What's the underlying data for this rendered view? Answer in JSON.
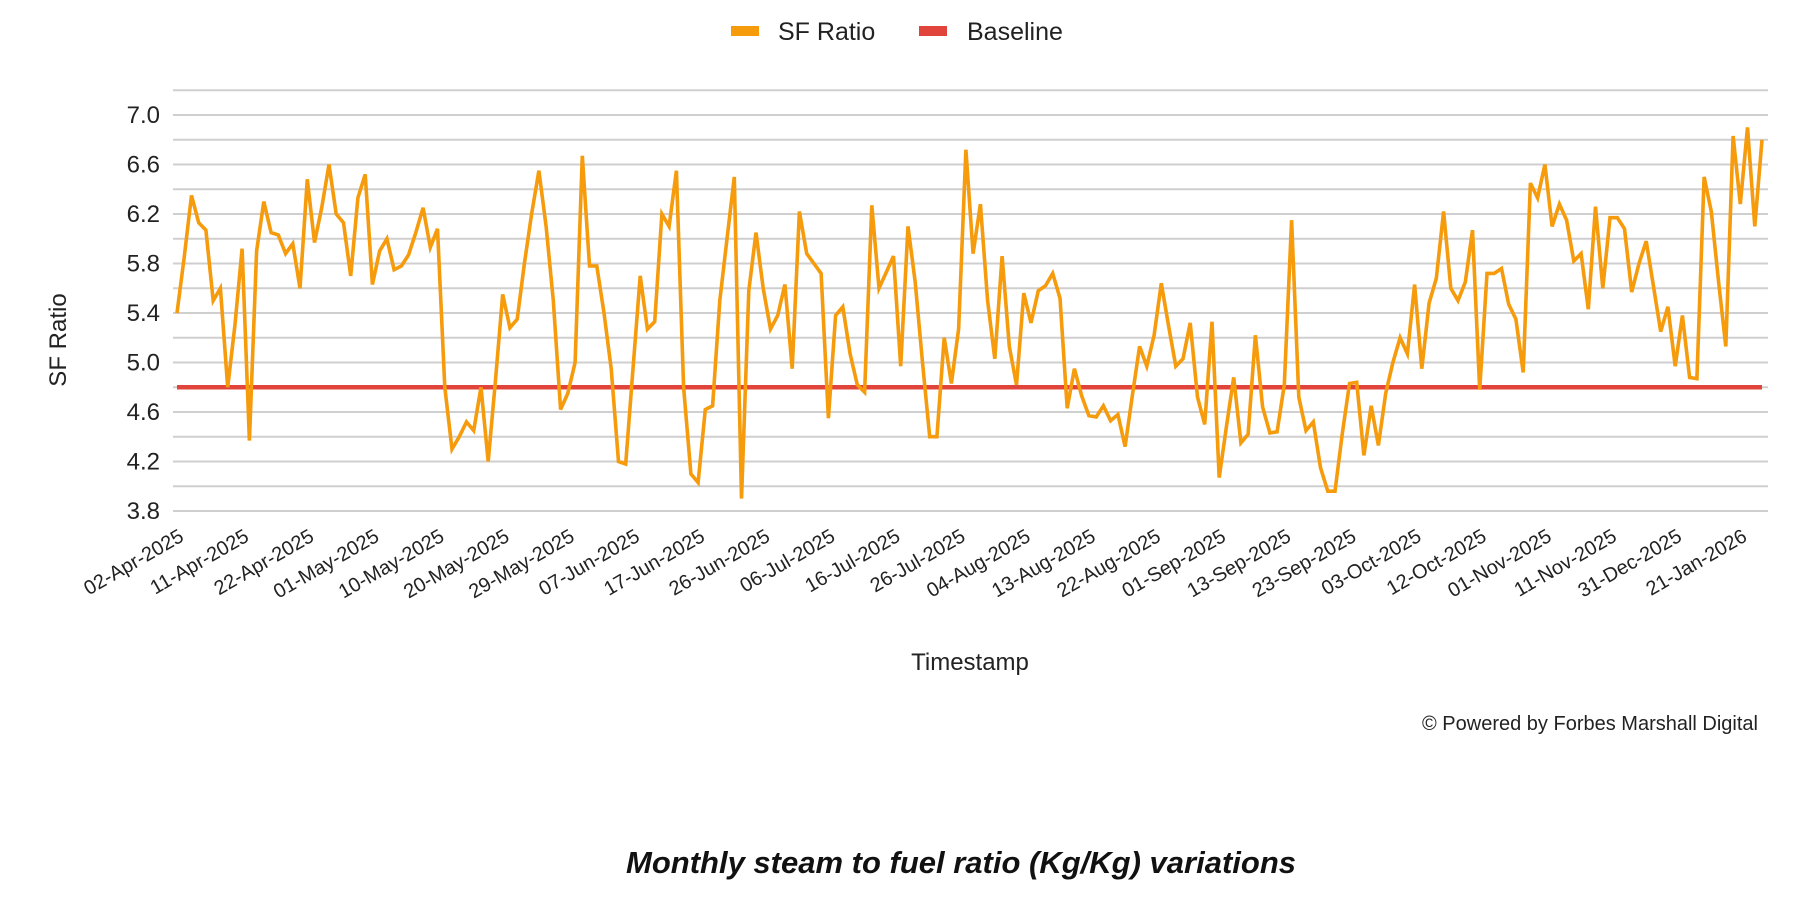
{
  "chart_data": {
    "type": "line",
    "title": "",
    "xlabel": "Timestamp",
    "ylabel": "SF Ratio",
    "ylim": [
      3.8,
      7.2
    ],
    "y_ticks": [
      "7.0",
      "6.6",
      "6.2",
      "5.8",
      "5.4",
      "5.0",
      "4.6",
      "4.2",
      "3.8"
    ],
    "grid": true,
    "legend_position": "top",
    "x_tick_labels": [
      "02-Apr-2025",
      "11-Apr-2025",
      "22-Apr-2025",
      "01-May-2025",
      "10-May-2025",
      "20-May-2025",
      "29-May-2025",
      "07-Jun-2025",
      "17-Jun-2025",
      "26-Jun-2025",
      "06-Jul-2025",
      "16-Jul-2025",
      "26-Jul-2025",
      "04-Aug-2025",
      "13-Aug-2025",
      "22-Aug-2025",
      "01-Sep-2025",
      "13-Sep-2025",
      "23-Sep-2025",
      "03-Oct-2025",
      "12-Oct-2025",
      "01-Nov-2025",
      "11-Nov-2025",
      "31-Dec-2025",
      "21-Jan-2026"
    ],
    "series": [
      {
        "name": "SF Ratio",
        "color": "#f59b0c",
        "values": [
          5.4,
          5.85,
          6.35,
          6.13,
          6.07,
          5.5,
          5.6,
          4.8,
          5.3,
          5.92,
          4.37,
          5.9,
          6.3,
          6.05,
          6.03,
          5.88,
          5.96,
          5.6,
          6.48,
          5.97,
          6.25,
          6.6,
          6.2,
          6.13,
          5.7,
          6.33,
          6.52,
          5.63,
          5.9,
          6.0,
          5.75,
          5.78,
          5.87,
          6.05,
          6.25,
          5.93,
          6.08,
          4.8,
          4.3,
          4.4,
          4.52,
          4.45,
          4.8,
          4.2,
          4.85,
          5.55,
          5.28,
          5.35,
          5.8,
          6.2,
          6.55,
          6.1,
          5.5,
          4.62,
          4.75,
          5.0,
          6.67,
          5.78,
          5.78,
          5.4,
          4.95,
          4.2,
          4.18,
          4.95,
          5.7,
          5.27,
          5.33,
          6.2,
          6.1,
          6.55,
          4.8,
          4.1,
          4.03,
          4.62,
          4.65,
          5.5,
          6.0,
          6.5,
          3.9,
          5.58,
          6.05,
          5.6,
          5.27,
          5.38,
          5.63,
          4.95,
          6.22,
          5.88,
          5.8,
          5.72,
          4.55,
          5.38,
          5.45,
          5.07,
          4.82,
          4.76,
          6.27,
          5.6,
          5.73,
          5.86,
          4.97,
          6.1,
          5.65,
          5.0,
          4.4,
          4.4,
          5.2,
          4.83,
          5.27,
          6.72,
          5.88,
          6.28,
          5.5,
          5.03,
          5.86,
          5.13,
          4.82,
          5.56,
          5.32,
          5.58,
          5.62,
          5.72,
          5.52,
          4.63,
          4.95,
          4.73,
          4.57,
          4.56,
          4.65,
          4.53,
          4.58,
          4.32,
          4.73,
          5.13,
          4.97,
          5.22,
          5.64,
          5.3,
          4.97,
          5.03,
          5.32,
          4.72,
          4.5,
          5.33,
          4.07,
          4.48,
          4.88,
          4.35,
          4.42,
          5.22,
          4.64,
          4.43,
          4.44,
          4.82,
          6.15,
          4.72,
          4.45,
          4.52,
          4.15,
          3.96,
          3.96,
          4.42,
          4.83,
          4.84,
          4.25,
          4.65,
          4.33,
          4.75,
          5.0,
          5.2,
          5.07,
          5.63,
          4.95,
          5.48,
          5.68,
          6.22,
          5.6,
          5.5,
          5.65,
          6.07,
          4.78,
          5.72,
          5.72,
          5.76,
          5.47,
          5.35,
          4.92,
          6.45,
          6.33,
          6.6,
          6.1,
          6.28,
          6.15,
          5.82,
          5.88,
          5.43,
          6.26,
          5.6,
          6.17,
          6.17,
          6.08,
          5.57,
          5.8,
          5.98,
          5.62,
          5.25,
          5.45,
          4.97,
          5.38,
          4.88,
          4.87,
          6.5,
          6.22,
          5.65,
          5.13,
          6.83,
          6.28,
          6.9,
          6.1,
          6.8
        ]
      },
      {
        "name": "Baseline",
        "color": "#e0443a",
        "value": 4.8
      }
    ]
  },
  "legend": {
    "items": [
      "SF Ratio",
      "Baseline"
    ]
  },
  "credit": "© Powered by Forbes Marshall Digital",
  "caption": "Monthly steam to fuel ratio (Kg/Kg) variations"
}
